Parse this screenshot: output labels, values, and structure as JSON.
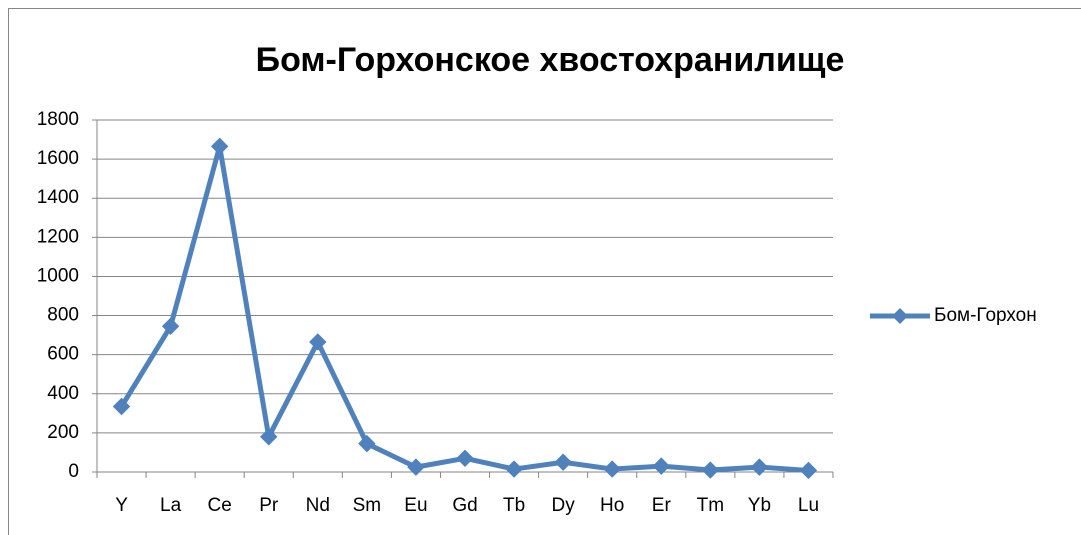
{
  "chart_data": {
    "type": "line",
    "title": "Бом-Горхонское хвостохранилище",
    "categories": [
      "Y",
      "La",
      "Ce",
      "Pr",
      "Nd",
      "Sm",
      "Eu",
      "Gd",
      "Tb",
      "Dy",
      "Ho",
      "Er",
      "Tm",
      "Yb",
      "Lu"
    ],
    "series": [
      {
        "name": "Бом-Горхон",
        "color": "#4f81bd",
        "values": [
          335,
          745,
          1665,
          180,
          665,
          145,
          25,
          70,
          15,
          50,
          15,
          30,
          10,
          25,
          8
        ]
      }
    ],
    "ylim": [
      0,
      1800
    ],
    "yticks": [
      0,
      200,
      400,
      600,
      800,
      1000,
      1200,
      1400,
      1600,
      1800
    ],
    "grid": true,
    "legend": "right"
  }
}
